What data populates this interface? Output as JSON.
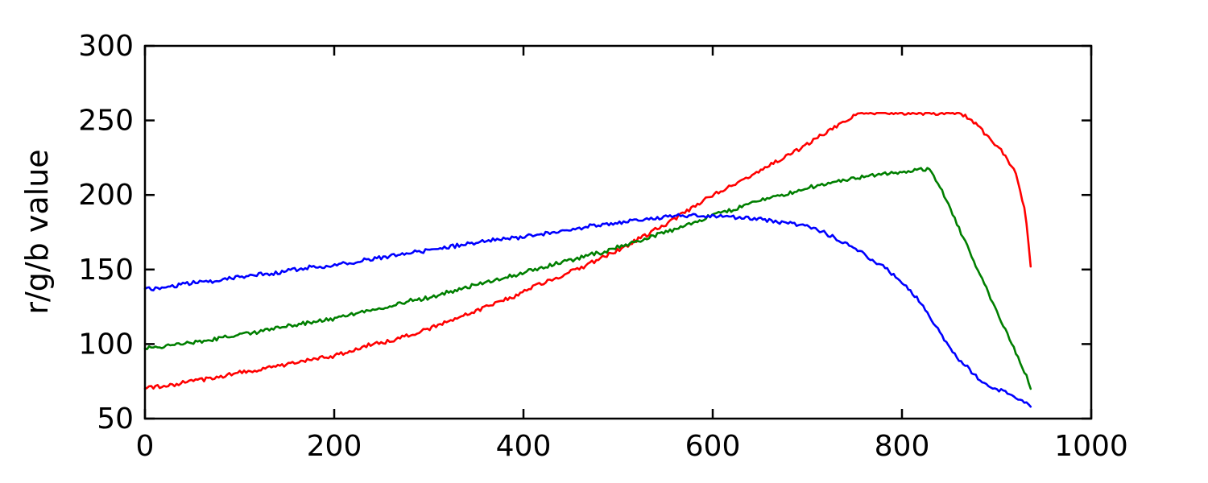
{
  "figure": {
    "background": "#ffffff"
  },
  "chart_data": {
    "type": "line",
    "title": "",
    "xlabel": "",
    "ylabel": "r/g/b value",
    "xlim": [
      0,
      1000
    ],
    "ylim": [
      50,
      300
    ],
    "x_ticks": [
      0,
      200,
      400,
      600,
      800,
      1000
    ],
    "y_ticks": [
      50,
      100,
      150,
      200,
      250,
      300
    ],
    "grid": false,
    "legend": "none",
    "noise_amplitude": 1.3,
    "frame_color": "#000000",
    "x": [
      0,
      10,
      20,
      30,
      40,
      50,
      60,
      70,
      80,
      90,
      100,
      110,
      120,
      130,
      140,
      150,
      160,
      170,
      180,
      190,
      200,
      210,
      220,
      230,
      240,
      250,
      260,
      270,
      280,
      290,
      300,
      310,
      320,
      330,
      340,
      350,
      360,
      370,
      380,
      390,
      400,
      410,
      420,
      430,
      440,
      450,
      460,
      470,
      480,
      490,
      500,
      510,
      520,
      530,
      540,
      550,
      560,
      570,
      580,
      590,
      600,
      610,
      620,
      630,
      640,
      650,
      660,
      670,
      680,
      690,
      700,
      710,
      720,
      730,
      740,
      750,
      760,
      770,
      780,
      790,
      800,
      810,
      820,
      830,
      840,
      850,
      860,
      870,
      880,
      890,
      900,
      910,
      920,
      930,
      936
    ],
    "series": [
      {
        "name": "red",
        "color": "#ff0000",
        "values": [
          70,
          71,
          72,
          72,
          74,
          75,
          76,
          77,
          78,
          80,
          81,
          82,
          83,
          84,
          85,
          86,
          88,
          89,
          90,
          91,
          92,
          94,
          96,
          98,
          100,
          101,
          102,
          104,
          106,
          108,
          110,
          113,
          115,
          117,
          120,
          122,
          125,
          127,
          130,
          132,
          135,
          138,
          141,
          143,
          146,
          149,
          151,
          154,
          157,
          160,
          163,
          166,
          170,
          173,
          177,
          180,
          184,
          188,
          192,
          196,
          200,
          203,
          206,
          210,
          213,
          216,
          220,
          223,
          227,
          230,
          234,
          238,
          242,
          246,
          250,
          253,
          255,
          255,
          255,
          255,
          255,
          255,
          255,
          255,
          255,
          255,
          255,
          252,
          246,
          240,
          233,
          226,
          214,
          190,
          152
        ]
      },
      {
        "name": "green",
        "color": "#007f00",
        "values": [
          97,
          98,
          98,
          100,
          100,
          101,
          102,
          103,
          104,
          105,
          106,
          107,
          108,
          110,
          111,
          112,
          113,
          114,
          115,
          116,
          117,
          119,
          120,
          122,
          123,
          124,
          126,
          127,
          129,
          130,
          131,
          133,
          135,
          136,
          138,
          140,
          141,
          143,
          145,
          146,
          148,
          150,
          151,
          153,
          155,
          156,
          158,
          160,
          161,
          163,
          165,
          167,
          169,
          171,
          173,
          175,
          177,
          180,
          182,
          184,
          187,
          189,
          190,
          192,
          194,
          196,
          198,
          200,
          201,
          203,
          205,
          206,
          207,
          209,
          210,
          211,
          212,
          213,
          214,
          215,
          215,
          216,
          217,
          217,
          206,
          192,
          178,
          164,
          150,
          136,
          122,
          108,
          95,
          81,
          70
        ]
      },
      {
        "name": "blue",
        "color": "#0000ff",
        "values": [
          137,
          137,
          138,
          139,
          140,
          141,
          142,
          142,
          143,
          144,
          145,
          146,
          147,
          147,
          148,
          149,
          150,
          151,
          152,
          152,
          153,
          154,
          155,
          156,
          157,
          158,
          159,
          160,
          161,
          162,
          163,
          164,
          165,
          166,
          167,
          168,
          169,
          170,
          171,
          171,
          172,
          173,
          174,
          175,
          176,
          177,
          178,
          179,
          180,
          180,
          181,
          182,
          183,
          184,
          184,
          185,
          186,
          186,
          186,
          186,
          186,
          186,
          185,
          185,
          184,
          184,
          183,
          182,
          181,
          180,
          179,
          177,
          174,
          171,
          168,
          164,
          160,
          156,
          152,
          147,
          141,
          135,
          128,
          118,
          108,
          98,
          90,
          84,
          77,
          73,
          70,
          67,
          64,
          61,
          58
        ]
      }
    ]
  }
}
